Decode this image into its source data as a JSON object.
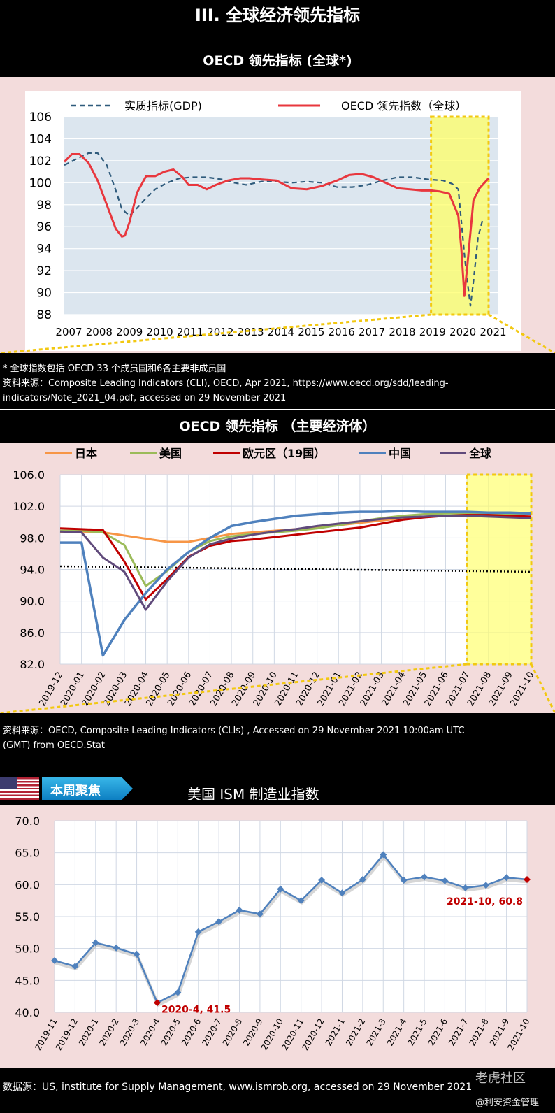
{
  "page_title": "III. 全球经济领先指标",
  "section1": {
    "title": "OECD 领先指标 (全球*)",
    "legend_gdp": "实质指标(GDP)",
    "legend_oecd": "OECD 领先指数（全球）",
    "notes": [
      "* 全球指数包括 OECD 33 个成员国和6各主要非成员国",
      "资料来源：Composite Leading Indicators (CLI), OECD, Apr 2021, https://www.oecd.org/sdd/leading-",
      "indicators/Note_2021_04.pdf, accessed on 29 November 2021"
    ]
  },
  "section2": {
    "title": "OECD 领先指标 （主要经济体）",
    "notes": [
      "资料来源：OECD, Composite Leading Indicators (CLIs) , Accessed on 29 November 2021 10:00am UTC",
      "(GMT) from OECD.Stat"
    ]
  },
  "section3": {
    "badge": "本周聚焦",
    "title": "美国 ISM 制造业指数",
    "note": "数据源：US, institute for Supply Management, www.ismrob.org, accessed on 29 November 2021",
    "watermark": "老虎社区",
    "watermark_sub": "@利安资金管理"
  },
  "colors": {
    "oecd_line": "#e8373e",
    "gdp_line": "#2f5b7c",
    "highlight": "#ffff66",
    "highlight_border": "#f2c811",
    "japan": "#f79646",
    "us": "#9bbb59",
    "euro": "#c00000",
    "china": "#4f81bd",
    "global": "#604a7b",
    "ism_line": "#4f81bd",
    "ism_marker_end": "#c00000",
    "ism_label": "#c00000"
  },
  "chart_data": [
    {
      "type": "line",
      "title": "OECD 领先指标 (全球*)",
      "x_ticks": [
        "2007",
        "2008",
        "2009",
        "2010",
        "2011",
        "2012",
        "2013",
        "2014",
        "2015",
        "2016",
        "2017",
        "2018",
        "2019",
        "2020",
        "2021"
      ],
      "y_ticks": [
        "106",
        "104",
        "102",
        "100",
        "98",
        "96",
        "94",
        "92",
        "90",
        "88"
      ],
      "ylim": [
        88,
        106
      ],
      "xlim": [
        2007,
        2021.3
      ],
      "grid": true,
      "highlight_x": [
        2019.1,
        2021.0
      ],
      "series": [
        {
          "name": "实质指标(GDP)",
          "style": "dashed",
          "x": [
            2007,
            2007.5,
            2007.8,
            2008.1,
            2008.4,
            2008.7,
            2008.9,
            2009.15,
            2009.4,
            2009.7,
            2010.0,
            2010.4,
            2010.8,
            2011.2,
            2011.7,
            2012.2,
            2012.6,
            2013.0,
            2013.5,
            2014.0,
            2014.5,
            2015.0,
            2015.5,
            2016.0,
            2016.5,
            2017.0,
            2017.5,
            2018.0,
            2018.5,
            2019.0,
            2019.5,
            2019.8,
            2020.0,
            2020.1,
            2020.2,
            2020.3,
            2020.4,
            2020.5,
            2020.65,
            2020.8
          ],
          "y": [
            101.6,
            102.3,
            102.7,
            102.7,
            101.6,
            99.3,
            97.6,
            97.0,
            97.7,
            98.6,
            99.4,
            100.0,
            100.4,
            100.5,
            100.5,
            100.3,
            100.0,
            99.8,
            100.1,
            100.1,
            100.0,
            100.1,
            100.0,
            99.6,
            99.6,
            99.8,
            100.2,
            100.5,
            100.5,
            100.3,
            100.2,
            99.9,
            99.4,
            96.5,
            93.5,
            91.0,
            88.8,
            91.0,
            95.0,
            96.6
          ]
        },
        {
          "name": "OECD 领先指数（全球）",
          "style": "solid",
          "x": [
            2007,
            2007.25,
            2007.5,
            2007.8,
            2008.1,
            2008.4,
            2008.7,
            2008.9,
            2009.0,
            2009.15,
            2009.4,
            2009.7,
            2010.0,
            2010.3,
            2010.6,
            2010.9,
            2011.1,
            2011.4,
            2011.7,
            2012.0,
            2012.4,
            2012.8,
            2013.1,
            2013.5,
            2014.0,
            2014.5,
            2015.0,
            2015.5,
            2016.0,
            2016.4,
            2016.8,
            2017.2,
            2017.6,
            2018.0,
            2018.4,
            2018.8,
            2019.1,
            2019.4,
            2019.7,
            2020.0,
            2020.1,
            2020.2,
            2020.3,
            2020.5,
            2020.7,
            2021.0
          ],
          "y": [
            101.9,
            102.6,
            102.6,
            101.8,
            100.2,
            98.0,
            95.8,
            95.1,
            95.2,
            96.4,
            99.1,
            100.6,
            100.6,
            101.0,
            101.2,
            100.5,
            99.8,
            99.8,
            99.4,
            99.8,
            100.2,
            100.4,
            100.4,
            100.3,
            100.2,
            99.5,
            99.4,
            99.7,
            100.2,
            100.7,
            100.8,
            100.5,
            100.0,
            99.5,
            99.4,
            99.3,
            99.3,
            99.2,
            99.0,
            97.0,
            94.0,
            89.7,
            92.5,
            98.4,
            99.5,
            100.4
          ]
        }
      ]
    },
    {
      "type": "line",
      "title": "OECD 领先指标 （主要经济体）",
      "categories": [
        "2019-12",
        "2020-01",
        "2020-02",
        "2020-03",
        "2020-04",
        "2020-05",
        "2020-06",
        "2020-07",
        "2020-08",
        "2020-09",
        "2020-10",
        "2020-11",
        "2020-12",
        "2021-01",
        "2021-02",
        "2021-03",
        "2021-04",
        "2021-05",
        "2021-06",
        "2021-07",
        "2021-08",
        "2021-09",
        "2021-10"
      ],
      "y_ticks": [
        "106.0",
        "102.0",
        "98.0",
        "94.0",
        "90.0",
        "86.0",
        "82.0"
      ],
      "ylim": [
        82,
        106
      ],
      "highlight_categories": [
        "2021-07",
        "2021-10"
      ],
      "series": [
        {
          "name": "日本",
          "values": [
            98.7,
            98.8,
            98.7,
            98.3,
            97.9,
            97.5,
            97.5,
            98.0,
            98.5,
            98.7,
            98.9,
            99.1,
            99.3,
            99.6,
            99.9,
            100.2,
            100.5,
            100.7,
            100.8,
            100.8,
            100.8,
            100.7,
            100.6
          ]
        },
        {
          "name": "美国",
          "values": [
            98.9,
            98.9,
            98.7,
            97.1,
            91.9,
            93.8,
            96.2,
            97.6,
            98.2,
            98.5,
            98.7,
            98.9,
            99.2,
            99.6,
            100.1,
            100.5,
            100.8,
            101.0,
            101.1,
            101.1,
            101.1,
            101.0,
            101.0
          ]
        },
        {
          "name": "欧元区（19国）",
          "values": [
            99.2,
            99.1,
            99.0,
            95.0,
            90.2,
            92.8,
            95.6,
            97.0,
            97.6,
            97.8,
            98.1,
            98.4,
            98.7,
            99.0,
            99.3,
            99.8,
            100.3,
            100.6,
            100.8,
            100.9,
            100.9,
            100.8,
            100.7
          ]
        },
        {
          "name": "中国",
          "values": [
            97.4,
            97.4,
            83.1,
            87.6,
            91.0,
            94.0,
            96.2,
            98.0,
            99.5,
            100.0,
            100.4,
            100.8,
            101.0,
            101.2,
            101.3,
            101.3,
            101.4,
            101.3,
            101.3,
            101.3,
            101.2,
            101.2,
            101.1
          ]
        },
        {
          "name": "全球",
          "values": [
            98.8,
            98.7,
            95.5,
            93.7,
            88.9,
            92.5,
            95.5,
            97.2,
            97.9,
            98.4,
            98.8,
            99.1,
            99.5,
            99.8,
            100.1,
            100.4,
            100.6,
            100.7,
            100.8,
            100.8,
            100.7,
            100.6,
            100.5
          ]
        }
      ],
      "reference_line": {
        "x": [
          0,
          22
        ],
        "y": [
          94.4,
          93.7
        ],
        "style": "dotted"
      }
    },
    {
      "type": "line",
      "title": "美国 ISM 制造业指数",
      "categories": [
        "2019-11",
        "2019-12",
        "2020-1",
        "2020-2",
        "2020-3",
        "2020-4",
        "2020-5",
        "2020-6",
        "2020-7",
        "2020-8",
        "2020-9",
        "2020-10",
        "2020-11",
        "2020-12",
        "2021-1",
        "2021-2",
        "2021-3",
        "2021-4",
        "2021-5",
        "2021-6",
        "2021-7",
        "2021-8",
        "2021-9",
        "2021-10"
      ],
      "values": [
        48.1,
        47.2,
        50.9,
        50.1,
        49.1,
        41.5,
        43.1,
        52.6,
        54.2,
        56.0,
        55.4,
        59.3,
        57.5,
        60.7,
        58.7,
        60.8,
        64.7,
        60.7,
        61.2,
        60.6,
        59.5,
        59.9,
        61.1,
        60.8
      ],
      "y_ticks": [
        "70.0",
        "65.0",
        "60.0",
        "55.0",
        "50.0",
        "45.0",
        "40.0"
      ],
      "ylim": [
        40,
        70
      ],
      "annotations": [
        {
          "label": "2020-4,  41.5",
          "index": 5
        },
        {
          "label": "2021-10, 60.8",
          "index": 23
        }
      ]
    }
  ]
}
